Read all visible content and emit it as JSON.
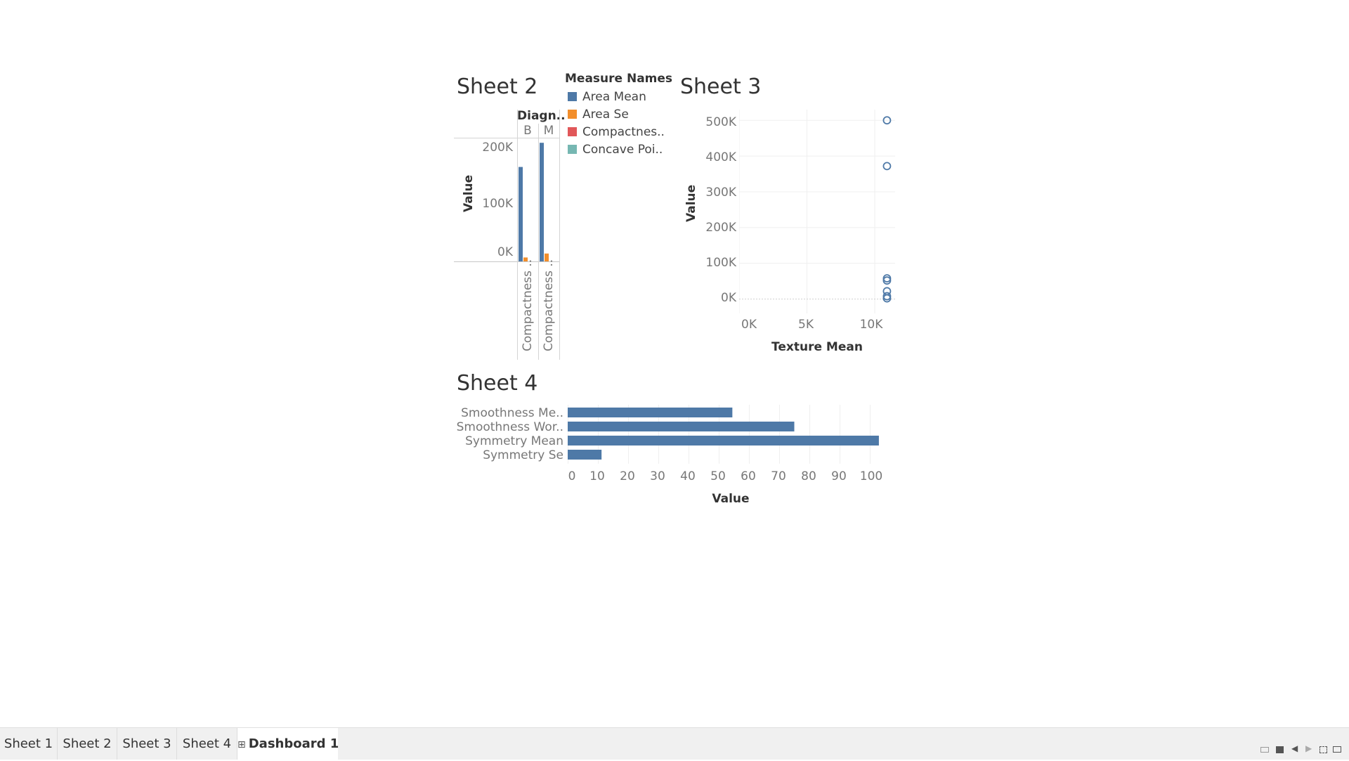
{
  "sheet2": {
    "title": "Sheet 2",
    "header_title": "Diagn..",
    "columns": [
      "B",
      "M"
    ],
    "y_axis_title": "Value",
    "y_ticks": [
      "200K",
      "100K",
      "0K"
    ],
    "x_labels": [
      "Compactness ..",
      "Compactness .."
    ],
    "legend": {
      "title": "Measure Names",
      "items": [
        {
          "label": "Area Mean",
          "color": "#4e79a7"
        },
        {
          "label": "Area Se",
          "color": "#f28e2b"
        },
        {
          "label": "Compactnes..",
          "color": "#e15759"
        },
        {
          "label": "Concave Poi..",
          "color": "#76b7b2"
        }
      ]
    }
  },
  "sheet3": {
    "title": "Sheet 3",
    "y_axis_title": "Value",
    "x_axis_title": "Texture Mean",
    "y_ticks": [
      "500K",
      "400K",
      "300K",
      "200K",
      "100K",
      "0K"
    ],
    "x_ticks": [
      "0K",
      "5K",
      "10K"
    ]
  },
  "sheet4": {
    "title": "Sheet 4",
    "x_axis_title": "Value",
    "x_ticks": [
      "0",
      "10",
      "20",
      "30",
      "40",
      "50",
      "60",
      "70",
      "80",
      "90",
      "100"
    ]
  },
  "chart_data": [
    {
      "type": "bar",
      "title": "Sheet 2",
      "categories": [
        "B",
        "M"
      ],
      "series": [
        {
          "name": "Area Mean",
          "values": [
            168000,
            211000
          ]
        },
        {
          "name": "Area Se",
          "values": [
            7000,
            14000
          ]
        },
        {
          "name": "Compactnes..",
          "values": [
            0,
            0
          ]
        },
        {
          "name": "Concave Poi..",
          "values": [
            0,
            0
          ]
        }
      ],
      "ylabel": "Value",
      "ylim": [
        0,
        220000
      ]
    },
    {
      "type": "scatter",
      "title": "Sheet 3",
      "xlabel": "Texture Mean",
      "ylabel": "Value",
      "xlim": [
        0,
        11500
      ],
      "ylim": [
        -40000,
        530000
      ],
      "points": [
        {
          "x": 10900,
          "y": 500000
        },
        {
          "x": 10900,
          "y": 372000
        },
        {
          "x": 10900,
          "y": 58000
        },
        {
          "x": 10900,
          "y": 52000
        },
        {
          "x": 10900,
          "y": 22000
        },
        {
          "x": 10900,
          "y": 8000
        },
        {
          "x": 10900,
          "y": 2000
        }
      ]
    },
    {
      "type": "bar",
      "title": "Sheet 4",
      "orientation": "horizontal",
      "categories": [
        "Smoothness Me..",
        "Smoothness Wor..",
        "Symmetry Mean",
        "Symmetry Se"
      ],
      "values": [
        54.5,
        75,
        103,
        11.2
      ],
      "xlabel": "Value",
      "xlim": [
        0,
        107
      ]
    }
  ],
  "tabs": [
    {
      "label": "Sheet 1"
    },
    {
      "label": "Sheet 2"
    },
    {
      "label": "Sheet 3"
    },
    {
      "label": "Sheet 4"
    },
    {
      "label": "Dashboard 1",
      "active": true
    }
  ]
}
